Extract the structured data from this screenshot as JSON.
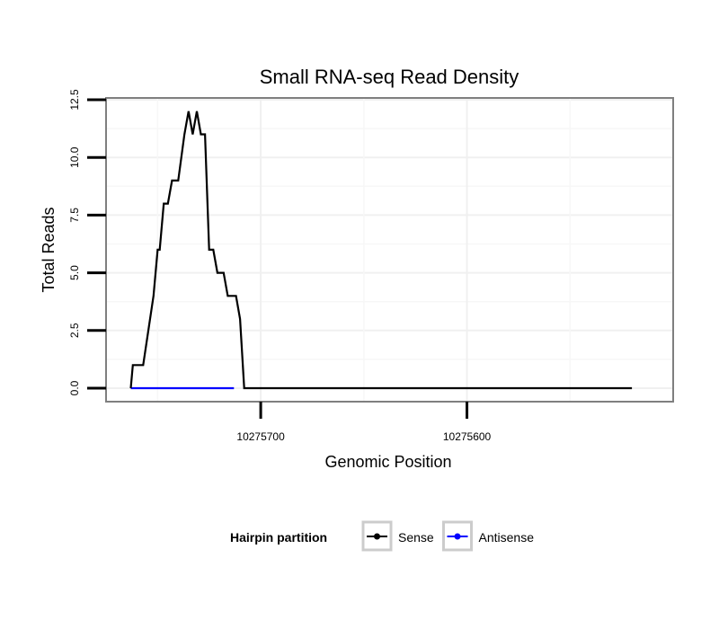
{
  "chart_data": {
    "type": "line",
    "title": "Small RNA-seq Read Density",
    "xlabel": "Genomic Position",
    "ylabel": "Total Reads",
    "xlim": [
      10275775,
      10275500
    ],
    "ylim": [
      0,
      12.5
    ],
    "x_reversed": true,
    "grid": true,
    "legend_position": "bottom",
    "legend_title": "Hairpin partition",
    "x_ticks": [
      {
        "value": 10275700,
        "label": "10275700"
      },
      {
        "value": 10275600,
        "label": "10275600"
      }
    ],
    "y_ticks": [
      {
        "value": 0,
        "label": "0.0"
      },
      {
        "value": 2.5,
        "label": "2.5"
      },
      {
        "value": 5,
        "label": "5.0"
      },
      {
        "value": 7.5,
        "label": "7.5"
      },
      {
        "value": 10,
        "label": "10.0"
      },
      {
        "value": 12.5,
        "label": "12.5"
      }
    ],
    "series": [
      {
        "name": "Sense",
        "color": "#000000",
        "x": [
          10275763,
          10275762,
          10275757,
          10275752,
          10275750,
          10275749,
          10275747,
          10275745,
          10275743,
          10275740,
          10275737,
          10275735,
          10275733,
          10275731,
          10275729,
          10275727,
          10275725,
          10275723,
          10275721,
          10275718,
          10275716,
          10275714,
          10275712,
          10275710,
          10275708,
          10275706,
          10275704,
          10275702,
          10275701,
          10275700,
          10275520
        ],
        "y": [
          0,
          1,
          1,
          4,
          6,
          6,
          8,
          8,
          9,
          9,
          11,
          12,
          11,
          12,
          11,
          11,
          6,
          6,
          5,
          5,
          4,
          4,
          4,
          3,
          0,
          0,
          0,
          0,
          0,
          0,
          0
        ]
      },
      {
        "name": "Antisense",
        "color": "#0000ff",
        "x": [
          10275763,
          10275713
        ],
        "y": [
          0,
          0
        ]
      }
    ]
  }
}
